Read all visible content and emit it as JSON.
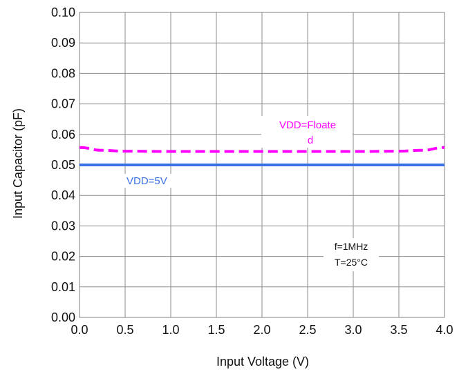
{
  "chart_data": {
    "type": "line",
    "xlabel": "Input Voltage (V)",
    "ylabel": "Input Capacitor (pF)",
    "xlim": [
      0.0,
      4.0
    ],
    "ylim": [
      0.0,
      0.1
    ],
    "x_ticks": [
      "0.0",
      "0.5",
      "1.0",
      "1.5",
      "2.0",
      "2.5",
      "3.0",
      "3.5",
      "4.0"
    ],
    "y_ticks": [
      "0.00",
      "0.01",
      "0.02",
      "0.03",
      "0.04",
      "0.05",
      "0.06",
      "0.07",
      "0.08",
      "0.09",
      "0.10"
    ],
    "grid": true,
    "series": [
      {
        "name": "VDD=5V",
        "color": "#3a6fe8",
        "line_style": "solid",
        "x": [
          0.0,
          0.5,
          1.0,
          1.5,
          2.0,
          2.5,
          3.0,
          3.5,
          4.0
        ],
        "values": [
          0.05,
          0.05,
          0.05,
          0.05,
          0.05,
          0.05,
          0.05,
          0.05,
          0.05
        ]
      },
      {
        "name": "VDD=Floated",
        "color": "#ff00ff",
        "line_style": "dashed",
        "x": [
          0.0,
          0.25,
          0.5,
          1.0,
          1.5,
          2.0,
          2.5,
          3.0,
          3.5,
          3.75,
          4.0
        ],
        "values": [
          0.0557,
          0.0548,
          0.0545,
          0.0544,
          0.0544,
          0.0544,
          0.0544,
          0.0544,
          0.0545,
          0.0548,
          0.0557
        ]
      }
    ],
    "labels": {
      "series1_label": "VDD=5V",
      "series2_label_line1": "VDD=Floate",
      "series2_label_line2": "d"
    },
    "annotation": [
      "f=1MHz",
      "T=25°C"
    ]
  }
}
